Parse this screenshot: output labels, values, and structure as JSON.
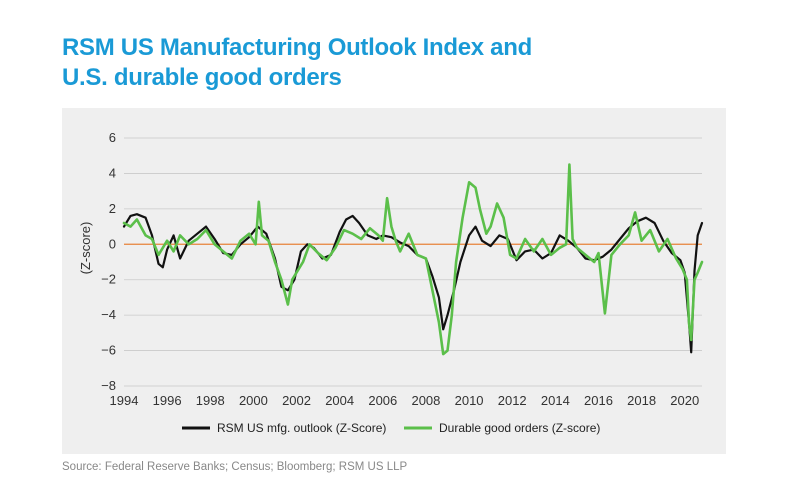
{
  "chart_data": {
    "type": "line",
    "title": "RSM US Manufacturing Outlook Index and U.S. durable good orders",
    "title_lines": [
      "RSM US Manufacturing Outlook Index and",
      "U.S. durable good orders"
    ],
    "ylabel": "(Z-score)",
    "xlabel": "",
    "xlim": [
      1994,
      2020.8
    ],
    "ylim": [
      -8,
      6
    ],
    "x_ticks": [
      "1994",
      "1996",
      "1998",
      "2000",
      "2002",
      "2004",
      "2006",
      "2008",
      "2010",
      "2012",
      "2014",
      "2016",
      "2018",
      "2020"
    ],
    "y_ticks": [
      "6",
      "4",
      "2",
      "0",
      "−2",
      "−4",
      "−6",
      "−8"
    ],
    "grid": true,
    "legend_position": "bottom",
    "zero_line_color": "#e8833a",
    "series": [
      {
        "name": "RSM US mfg. outlook (Z-Score)",
        "color": "#111111",
        "x": [
          1994.0,
          1994.3,
          1994.6,
          1995.0,
          1995.3,
          1995.6,
          1995.8,
          1996.0,
          1996.3,
          1996.6,
          1997.0,
          1997.4,
          1997.8,
          1998.2,
          1998.6,
          1999.0,
          1999.4,
          1999.8,
          2000.2,
          2000.6,
          2001.0,
          2001.3,
          2001.6,
          2001.9,
          2002.2,
          2002.5,
          2002.8,
          2003.2,
          2003.6,
          2004.0,
          2004.3,
          2004.6,
          2004.9,
          2005.3,
          2005.7,
          2006.0,
          2006.4,
          2006.8,
          2007.2,
          2007.6,
          2008.0,
          2008.3,
          2008.6,
          2008.8,
          2009.0,
          2009.3,
          2009.6,
          2010.0,
          2010.3,
          2010.6,
          2011.0,
          2011.4,
          2011.8,
          2012.2,
          2012.6,
          2013.0,
          2013.4,
          2013.8,
          2014.2,
          2014.6,
          2015.0,
          2015.4,
          2015.8,
          2016.2,
          2016.6,
          2017.0,
          2017.4,
          2017.8,
          2018.2,
          2018.6,
          2019.0,
          2019.4,
          2019.8,
          2020.0,
          2020.2,
          2020.3,
          2020.45,
          2020.6,
          2020.8
        ],
        "y": [
          1.0,
          1.6,
          1.7,
          1.5,
          0.5,
          -1.1,
          -1.3,
          -0.3,
          0.5,
          -0.8,
          0.2,
          0.6,
          1.0,
          0.3,
          -0.5,
          -0.6,
          0.0,
          0.4,
          1.0,
          0.6,
          -0.8,
          -2.4,
          -2.6,
          -2.0,
          -0.4,
          0.0,
          -0.2,
          -0.8,
          -0.6,
          0.7,
          1.4,
          1.6,
          1.2,
          0.5,
          0.3,
          0.5,
          0.4,
          0.1,
          -0.1,
          -0.6,
          -0.8,
          -1.8,
          -3.0,
          -4.8,
          -4.0,
          -2.6,
          -1.0,
          0.5,
          1.0,
          0.2,
          -0.1,
          0.5,
          0.3,
          -0.9,
          -0.4,
          -0.3,
          -0.8,
          -0.5,
          0.5,
          0.2,
          -0.2,
          -0.8,
          -0.9,
          -0.7,
          -0.3,
          0.3,
          0.9,
          1.3,
          1.5,
          1.2,
          0.2,
          -0.5,
          -0.9,
          -1.6,
          -4.5,
          -6.1,
          -1.5,
          0.5,
          1.2
        ]
      },
      {
        "name": "Durable good orders (Z-score)",
        "color": "#5bbf4a",
        "x": [
          1994.0,
          1994.3,
          1994.6,
          1995.0,
          1995.3,
          1995.6,
          1995.8,
          1996.0,
          1996.3,
          1996.6,
          1997.0,
          1997.4,
          1997.8,
          1998.2,
          1998.6,
          1999.0,
          1999.4,
          1999.8,
          2000.1,
          2000.25,
          2000.4,
          2000.7,
          2001.0,
          2001.3,
          2001.6,
          2001.8,
          2002.0,
          2002.3,
          2002.6,
          2003.0,
          2003.4,
          2003.8,
          2004.2,
          2004.6,
          2005.0,
          2005.4,
          2005.8,
          2006.0,
          2006.2,
          2006.4,
          2006.6,
          2006.8,
          2007.2,
          2007.6,
          2008.0,
          2008.3,
          2008.6,
          2008.8,
          2009.0,
          2009.2,
          2009.4,
          2009.7,
          2010.0,
          2010.3,
          2010.5,
          2010.8,
          2011.0,
          2011.3,
          2011.6,
          2011.9,
          2012.2,
          2012.6,
          2013.0,
          2013.4,
          2013.8,
          2014.2,
          2014.5,
          2014.65,
          2014.8,
          2015.0,
          2015.4,
          2015.8,
          2016.0,
          2016.3,
          2016.6,
          2017.0,
          2017.4,
          2017.7,
          2018.0,
          2018.4,
          2018.8,
          2019.2,
          2019.6,
          2019.9,
          2020.1,
          2020.2,
          2020.3,
          2020.45,
          2020.6,
          2020.8
        ],
        "y": [
          1.2,
          1.0,
          1.4,
          0.5,
          0.3,
          -0.6,
          -0.2,
          0.2,
          -0.4,
          0.5,
          0.0,
          0.3,
          0.8,
          0.0,
          -0.4,
          -0.8,
          0.2,
          0.6,
          0.0,
          2.4,
          0.5,
          0.2,
          -1.0,
          -2.0,
          -3.4,
          -2.0,
          -1.6,
          -1.0,
          0.0,
          -0.5,
          -0.9,
          -0.2,
          0.8,
          0.6,
          0.3,
          0.9,
          0.5,
          0.2,
          2.6,
          1.0,
          0.2,
          -0.4,
          0.6,
          -0.6,
          -0.8,
          -2.6,
          -4.4,
          -6.2,
          -6.0,
          -4.0,
          -1.0,
          1.5,
          3.5,
          3.2,
          2.0,
          0.6,
          1.0,
          2.3,
          1.5,
          -0.6,
          -0.8,
          0.3,
          -0.4,
          0.3,
          -0.6,
          -0.2,
          0.0,
          4.5,
          0.3,
          -0.2,
          -0.6,
          -1.0,
          -0.5,
          -3.9,
          -0.6,
          0.0,
          0.5,
          1.8,
          0.2,
          0.8,
          -0.4,
          0.3,
          -0.8,
          -1.4,
          -2.0,
          -4.5,
          -5.4,
          -2.0,
          -1.6,
          -1.0
        ]
      }
    ]
  },
  "source_text": "Source: Federal Reserve Banks; Census; Bloomberg; RSM US LLP"
}
